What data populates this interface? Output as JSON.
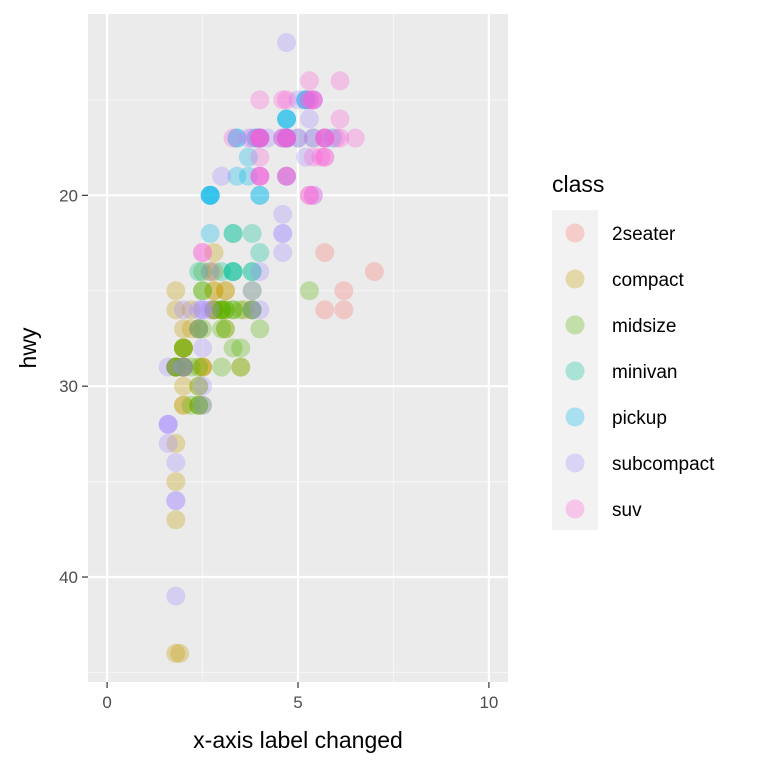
{
  "chart_data": {
    "type": "scatter",
    "xlabel": "x-axis label changed",
    "ylabel": "hwy",
    "xlim": [
      -0.5,
      10.5
    ],
    "ylim": [
      10.5,
      45.5
    ],
    "y_reversed": true,
    "x_ticks": [
      0,
      5,
      10
    ],
    "y_ticks": [
      20,
      30,
      40
    ],
    "x_tick_labels": [
      "0",
      "5",
      "10"
    ],
    "y_tick_labels": [
      "20",
      "30",
      "40"
    ],
    "grid": true,
    "point_alpha": 0.3,
    "legend": {
      "title": "class",
      "placement": "right"
    },
    "series": [
      {
        "name": "2seater",
        "color": "#F8766D",
        "points": [
          [
            5.7,
            26
          ],
          [
            5.7,
            23
          ],
          [
            6.2,
            26
          ],
          [
            6.2,
            25
          ],
          [
            7.0,
            24
          ]
        ]
      },
      {
        "name": "compact",
        "color": "#C49A00",
        "points": [
          [
            1.8,
            29
          ],
          [
            1.8,
            29
          ],
          [
            2.0,
            31
          ],
          [
            2.0,
            30
          ],
          [
            2.8,
            26
          ],
          [
            2.8,
            26
          ],
          [
            3.1,
            27
          ],
          [
            1.8,
            26
          ],
          [
            1.8,
            25
          ],
          [
            2.0,
            28
          ],
          [
            2.0,
            27
          ],
          [
            2.8,
            25
          ],
          [
            2.8,
            25
          ],
          [
            3.1,
            25
          ],
          [
            3.1,
            25
          ],
          [
            2.4,
            27
          ],
          [
            2.4,
            30
          ],
          [
            3.1,
            26
          ],
          [
            3.5,
            29
          ],
          [
            3.6,
            26
          ],
          [
            1.8,
            29
          ],
          [
            1.8,
            29
          ],
          [
            2.0,
            28
          ],
          [
            2.0,
            29
          ],
          [
            2.8,
            26
          ],
          [
            1.9,
            44
          ],
          [
            2.0,
            29
          ],
          [
            2.0,
            29
          ],
          [
            2.0,
            28
          ],
          [
            2.0,
            29
          ],
          [
            2.5,
            29
          ],
          [
            2.5,
            29
          ],
          [
            2.8,
            23
          ],
          [
            2.8,
            24
          ],
          [
            1.8,
            44
          ],
          [
            1.8,
            35
          ],
          [
            1.8,
            37
          ],
          [
            1.8,
            33
          ],
          [
            2.2,
            26
          ],
          [
            2.5,
            29
          ],
          [
            2.0,
            31
          ],
          [
            2.2,
            27
          ],
          [
            2.4,
            31
          ],
          [
            3.0,
            26
          ],
          [
            2.0,
            29
          ],
          [
            2.7,
            24
          ]
        ]
      },
      {
        "name": "midsize",
        "color": "#53B400",
        "points": [
          [
            2.4,
            27
          ],
          [
            3.0,
            26
          ],
          [
            3.3,
            26
          ],
          [
            2.4,
            30
          ],
          [
            2.5,
            31
          ],
          [
            2.5,
            25
          ],
          [
            3.3,
            28
          ],
          [
            2.0,
            29
          ],
          [
            2.0,
            28
          ],
          [
            3.1,
            26
          ],
          [
            3.5,
            26
          ],
          [
            3.8,
            26
          ],
          [
            3.8,
            26
          ],
          [
            5.3,
            25
          ],
          [
            1.8,
            29
          ],
          [
            3.0,
            26
          ],
          [
            2.2,
            31
          ],
          [
            3.0,
            27
          ],
          [
            3.8,
            26
          ],
          [
            2.4,
            31
          ],
          [
            2.4,
            27
          ],
          [
            2.5,
            27
          ],
          [
            3.3,
            26
          ],
          [
            2.2,
            29
          ],
          [
            2.4,
            29
          ],
          [
            3.0,
            29
          ],
          [
            3.5,
            28
          ],
          [
            1.8,
            29
          ],
          [
            1.8,
            29
          ],
          [
            2.0,
            28
          ],
          [
            2.0,
            29
          ],
          [
            2.8,
            26
          ],
          [
            3.1,
            27
          ],
          [
            2.5,
            25
          ],
          [
            2.5,
            24
          ],
          [
            2.4,
            31
          ],
          [
            3.0,
            26
          ],
          [
            3.5,
            29
          ],
          [
            3.8,
            25
          ],
          [
            4.0,
            27
          ]
        ]
      },
      {
        "name": "minivan",
        "color": "#00C094",
        "points": [
          [
            2.4,
            24
          ],
          [
            3.0,
            24
          ],
          [
            3.3,
            22
          ],
          [
            3.3,
            22
          ],
          [
            3.3,
            24
          ],
          [
            3.3,
            24
          ],
          [
            3.3,
            24
          ],
          [
            3.8,
            22
          ],
          [
            3.8,
            24
          ],
          [
            3.8,
            24
          ],
          [
            4.0,
            23
          ]
        ]
      },
      {
        "name": "pickup",
        "color": "#00B6EB",
        "points": [
          [
            3.7,
            19
          ],
          [
            3.7,
            18
          ],
          [
            3.9,
            17
          ],
          [
            3.9,
            17
          ],
          [
            4.7,
            16
          ],
          [
            4.7,
            16
          ],
          [
            4.7,
            17
          ],
          [
            5.2,
            15
          ],
          [
            5.2,
            15
          ],
          [
            5.7,
            17
          ],
          [
            5.9,
            17
          ],
          [
            4.7,
            17
          ],
          [
            4.7,
            17
          ],
          [
            4.7,
            16
          ],
          [
            5.2,
            15
          ],
          [
            2.7,
            20
          ],
          [
            2.7,
            20
          ],
          [
            2.7,
            22
          ],
          [
            3.4,
            17
          ],
          [
            3.4,
            19
          ],
          [
            4.0,
            17
          ],
          [
            4.0,
            20
          ],
          [
            4.0,
            17
          ],
          [
            4.6,
            17
          ],
          [
            5.4,
            17
          ],
          [
            2.7,
            20
          ],
          [
            2.7,
            20
          ],
          [
            3.4,
            17
          ],
          [
            4.0,
            17
          ],
          [
            4.0,
            20
          ],
          [
            4.7,
            17
          ],
          [
            5.0,
            17
          ],
          [
            4.7,
            19
          ]
        ]
      },
      {
        "name": "subcompact",
        "color": "#A58AFF",
        "points": [
          [
            3.8,
            26
          ],
          [
            3.8,
            25
          ],
          [
            4.0,
            26
          ],
          [
            4.0,
            24
          ],
          [
            4.6,
            21
          ],
          [
            4.6,
            22
          ],
          [
            4.6,
            23
          ],
          [
            4.6,
            22
          ],
          [
            5.4,
            20
          ],
          [
            1.6,
            33
          ],
          [
            1.6,
            32
          ],
          [
            1.6,
            32
          ],
          [
            1.6,
            29
          ],
          [
            1.6,
            32
          ],
          [
            1.8,
            34
          ],
          [
            1.8,
            36
          ],
          [
            1.8,
            36
          ],
          [
            2.0,
            29
          ],
          [
            2.4,
            26
          ],
          [
            2.4,
            27
          ],
          [
            2.5,
            30
          ],
          [
            2.5,
            31
          ],
          [
            2.5,
            26
          ],
          [
            2.5,
            28
          ],
          [
            2.7,
            26
          ],
          [
            2.7,
            24
          ],
          [
            1.8,
            41
          ],
          [
            2.0,
            26
          ],
          [
            2.0,
            29
          ],
          [
            2.5,
            26
          ],
          [
            4.7,
            12
          ],
          [
            5.4,
            15
          ],
          [
            5.0,
            15
          ],
          [
            5.2,
            18
          ],
          [
            5.4,
            15
          ],
          [
            3.0,
            19
          ],
          [
            3.7,
            17
          ],
          [
            4.0,
            19
          ],
          [
            4.2,
            17
          ],
          [
            5.3,
            16
          ]
        ]
      },
      {
        "name": "suv",
        "color": "#FB61D7",
        "points": [
          [
            5.3,
            20
          ],
          [
            5.3,
            15
          ],
          [
            5.3,
            20
          ],
          [
            5.7,
            17
          ],
          [
            6.0,
            17
          ],
          [
            5.7,
            18
          ],
          [
            6.5,
            17
          ],
          [
            5.3,
            14
          ],
          [
            5.3,
            15
          ],
          [
            6.1,
            14
          ],
          [
            4.6,
            15
          ],
          [
            5.4,
            15
          ],
          [
            4.0,
            15
          ],
          [
            4.0,
            19
          ],
          [
            4.0,
            19
          ],
          [
            4.0,
            17
          ],
          [
            4.7,
            17
          ],
          [
            4.7,
            19
          ],
          [
            4.7,
            15
          ],
          [
            5.7,
            17
          ],
          [
            6.1,
            16
          ],
          [
            4.7,
            17
          ],
          [
            4.7,
            17
          ],
          [
            4.7,
            19
          ],
          [
            5.7,
            17
          ],
          [
            6.1,
            17
          ],
          [
            5.4,
            18
          ],
          [
            5.6,
            18
          ],
          [
            4.0,
            19
          ],
          [
            4.6,
            17
          ],
          [
            5.0,
            17
          ],
          [
            4.0,
            17
          ],
          [
            4.0,
            17
          ],
          [
            4.0,
            18
          ],
          [
            4.7,
            19
          ],
          [
            4.7,
            17
          ],
          [
            5.7,
            17
          ],
          [
            3.3,
            17
          ],
          [
            3.8,
            17
          ],
          [
            4.0,
            17
          ],
          [
            4.0,
            17
          ],
          [
            4.6,
            17
          ],
          [
            5.4,
            17
          ],
          [
            5.7,
            18
          ],
          [
            2.5,
            23
          ],
          [
            2.5,
            23
          ],
          [
            5.4,
            20
          ],
          [
            5.4,
            15
          ]
        ]
      }
    ]
  }
}
